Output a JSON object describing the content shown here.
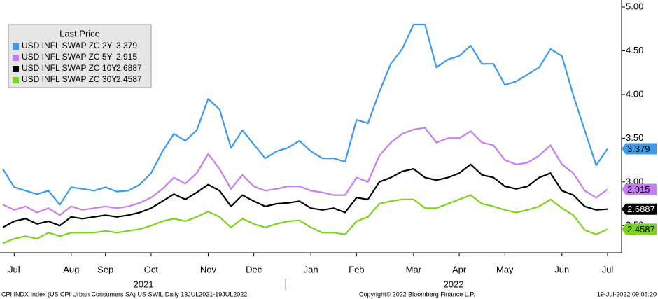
{
  "chart_data": {
    "type": "line",
    "legend_title": "Last Price",
    "categories": [
      null,
      "Jul",
      null,
      null,
      null,
      null,
      "Aug",
      null,
      null,
      "Sep",
      null,
      null,
      null,
      "Oct",
      null,
      null,
      null,
      null,
      "Nov",
      null,
      null,
      null,
      "Dec",
      null,
      null,
      null,
      null,
      "Jan",
      null,
      null,
      null,
      "Feb",
      null,
      null,
      null,
      null,
      "Mar",
      null,
      null,
      null,
      "Apr",
      null,
      null,
      null,
      "May",
      null,
      null,
      null,
      null,
      "Jun",
      null,
      null,
      null,
      "Jul"
    ],
    "year_labels": [
      "2021",
      "2022"
    ],
    "ylim": [
      2.19,
      5.08
    ],
    "yticks": [
      {
        "value": 2.5,
        "label": "2.50"
      },
      {
        "value": 3,
        "label": "3.00"
      },
      {
        "value": 3.5,
        "label": "3.50"
      },
      {
        "value": 4,
        "label": "4.00"
      },
      {
        "value": 4.5,
        "label": "4.50"
      },
      {
        "value": 5,
        "label": "5.00"
      }
    ],
    "series": [
      {
        "name": "USD INFL SWAP ZC 2Y",
        "color": "#3d9be9",
        "values": [
          3.15,
          2.94,
          2.9,
          2.86,
          2.9,
          2.74,
          2.94,
          2.92,
          2.9,
          2.94,
          2.89,
          2.9,
          2.97,
          3.1,
          3.35,
          3.55,
          3.47,
          3.59,
          3.95,
          3.83,
          3.39,
          3.59,
          3.43,
          3.27,
          3.35,
          3.39,
          3.47,
          3.35,
          3.27,
          3.27,
          3.23,
          3.71,
          3.67,
          4.03,
          4.35,
          4.52,
          4.8,
          4.8,
          4.31,
          4.4,
          4.44,
          4.56,
          4.35,
          4.35,
          4.11,
          4.15,
          4.23,
          4.31,
          4.52,
          4.44,
          3.99,
          3.59,
          3.19,
          3.379
        ]
      },
      {
        "name": "USD INFL SWAP ZC 5Y",
        "color": "#c77df3",
        "values": [
          2.74,
          2.68,
          2.72,
          2.65,
          2.7,
          2.62,
          2.72,
          2.68,
          2.7,
          2.72,
          2.7,
          2.72,
          2.76,
          2.82,
          2.92,
          3.05,
          2.98,
          3.1,
          3.32,
          3.15,
          2.92,
          3.08,
          2.95,
          2.9,
          2.92,
          2.95,
          2.95,
          2.9,
          2.88,
          2.85,
          2.85,
          3.05,
          3.0,
          3.3,
          3.45,
          3.55,
          3.6,
          3.62,
          3.45,
          3.5,
          3.5,
          3.58,
          3.45,
          3.42,
          3.25,
          3.2,
          3.22,
          3.3,
          3.42,
          3.2,
          3.1,
          2.9,
          2.82,
          2.915
        ]
      },
      {
        "name": "USD INFL SWAP ZC 10Y",
        "color": "#000000",
        "values": [
          2.48,
          2.55,
          2.58,
          2.52,
          2.55,
          2.5,
          2.6,
          2.58,
          2.6,
          2.62,
          2.6,
          2.62,
          2.65,
          2.7,
          2.78,
          2.86,
          2.8,
          2.88,
          2.97,
          2.9,
          2.72,
          2.85,
          2.78,
          2.72,
          2.75,
          2.76,
          2.78,
          2.7,
          2.68,
          2.7,
          2.65,
          2.82,
          2.8,
          3.0,
          3.05,
          3.12,
          3.15,
          3.05,
          3.02,
          3.05,
          3.1,
          3.2,
          3.08,
          3.05,
          2.95,
          2.92,
          2.95,
          3.05,
          3.1,
          2.9,
          2.85,
          2.72,
          2.68,
          2.6887
        ]
      },
      {
        "name": "USD INFL SWAP ZC 30Y",
        "color": "#7ed321",
        "values": [
          2.3,
          2.35,
          2.38,
          2.35,
          2.42,
          2.38,
          2.42,
          2.42,
          2.42,
          2.44,
          2.42,
          2.44,
          2.46,
          2.5,
          2.55,
          2.58,
          2.55,
          2.6,
          2.66,
          2.6,
          2.48,
          2.58,
          2.52,
          2.48,
          2.52,
          2.55,
          2.56,
          2.48,
          2.42,
          2.42,
          2.4,
          2.55,
          2.6,
          2.75,
          2.78,
          2.8,
          2.8,
          2.7,
          2.7,
          2.75,
          2.8,
          2.85,
          2.75,
          2.72,
          2.68,
          2.65,
          2.68,
          2.72,
          2.8,
          2.7,
          2.62,
          2.45,
          2.4,
          2.4587
        ]
      }
    ],
    "footer": {
      "source": "CPI INDX Index (US CPI Urban Consumers SA) US SWIL  Daily 13JUL2021-19JUL2022",
      "copyright": "Copyright© 2022 Bloomberg Finance L.P.",
      "timestamp": "19-Jul-2022 09:05:20"
    }
  }
}
